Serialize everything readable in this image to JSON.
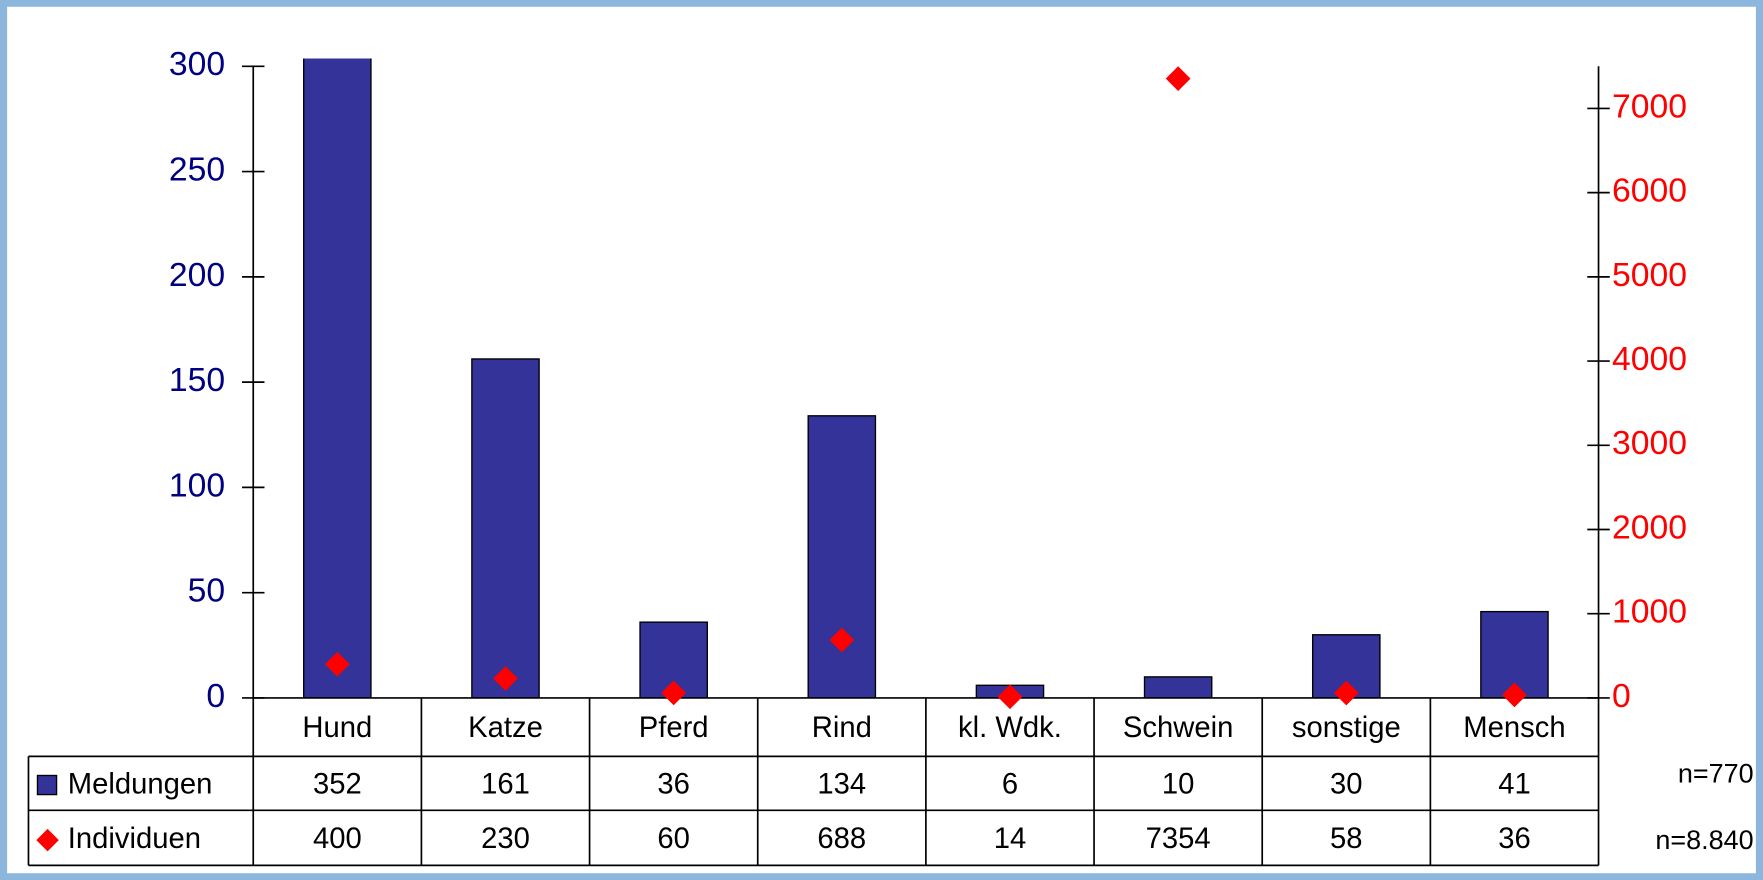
{
  "chart_data": {
    "type": "bar",
    "categories": [
      "Hund",
      "Katze",
      "Pferd",
      "Rind",
      "kl. Wdk.",
      "Schwein",
      "sonstige",
      "Mensch"
    ],
    "series": [
      {
        "name": "Meldungen",
        "type": "bar",
        "color": "#333399",
        "values": [
          352,
          161,
          36,
          134,
          6,
          10,
          30,
          41
        ]
      },
      {
        "name": "Individuen",
        "type": "scatter",
        "axis": "y2",
        "color": "#ff0000",
        "values": [
          400,
          230,
          60,
          688,
          14,
          7354,
          58,
          36
        ]
      }
    ],
    "ylim": [
      0,
      300
    ],
    "yticks": [
      0,
      50,
      100,
      150,
      200,
      250,
      300
    ],
    "y2lim": [
      0,
      7500
    ],
    "y2ticks": [
      0,
      1000,
      2000,
      3000,
      4000,
      5000,
      6000,
      7000
    ],
    "annotations": [
      "n=770",
      "n=8.840"
    ]
  }
}
